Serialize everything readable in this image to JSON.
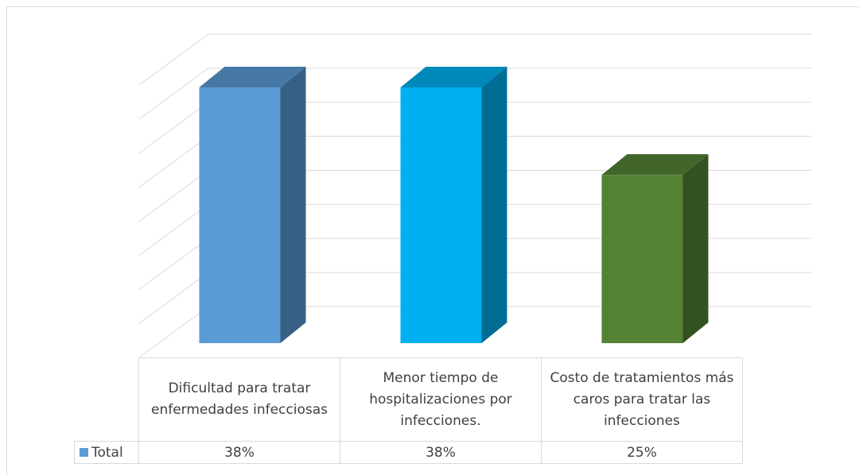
{
  "chart_data": {
    "type": "bar3d",
    "categories": [
      "Dificultad para tratar enfermedades infecciosas",
      "Menor tiempo de hospitalizaciones por infecciones.",
      "Costo de tratamientos más caros para tratar las infecciones"
    ],
    "series": [
      {
        "name": "Total",
        "color": "#5b9bd5",
        "colors": [
          "#5b9bd5",
          "#00b0f0",
          "#548235"
        ],
        "values": [
          38,
          38,
          25
        ],
        "value_labels": [
          "38%",
          "38%",
          "25%"
        ]
      }
    ],
    "ylim": [
      0,
      40
    ],
    "yticks": [
      0,
      5,
      10,
      15,
      20,
      25,
      30,
      35,
      40
    ],
    "grid": true
  }
}
